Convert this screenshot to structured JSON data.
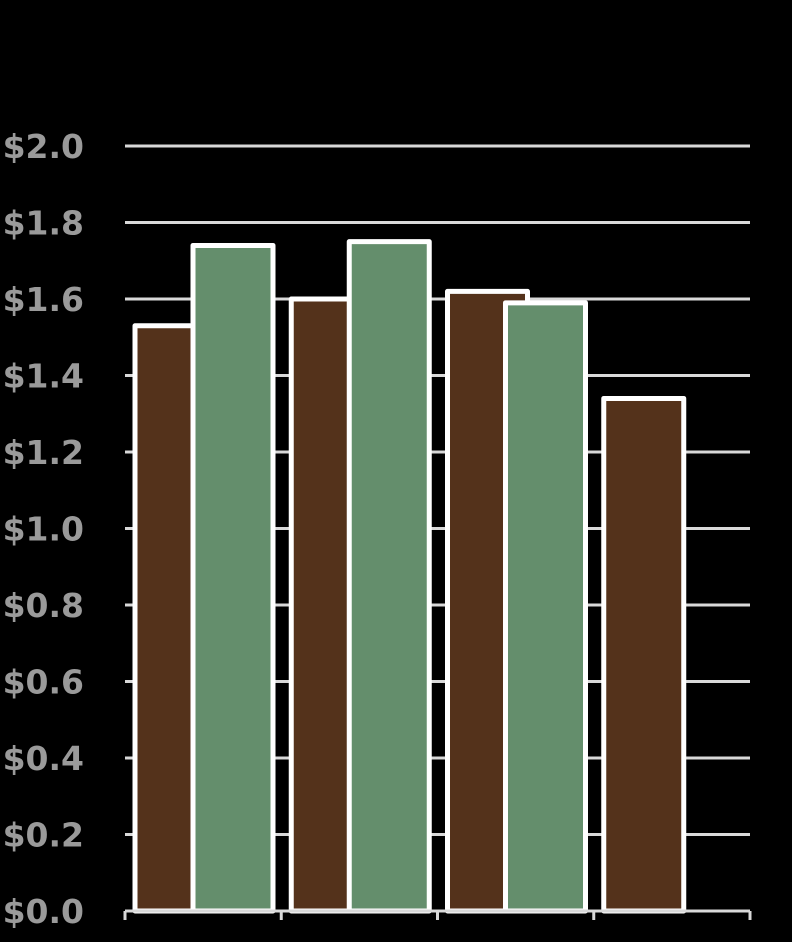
{
  "chart_data": {
    "type": "bar",
    "title": "",
    "xlabel": "",
    "ylabel": "",
    "ylim": [
      0,
      2.0
    ],
    "yticks": [
      "$0.0",
      "$0.2",
      "$0.4",
      "$0.6",
      "$0.8",
      "$1.0",
      "$1.2",
      "$1.4",
      "$1.6",
      "$1.8",
      "$2.0"
    ],
    "ytick_values": [
      0,
      0.2,
      0.4,
      0.6,
      0.8,
      1.0,
      1.2,
      1.4,
      1.6,
      1.8,
      2.0
    ],
    "grid": true,
    "legend": "none",
    "categories": [
      "",
      "",
      "",
      ""
    ],
    "series": [
      {
        "values": [
          1.53,
          1.6,
          1.62,
          1.34
        ],
        "color": "#54321b"
      },
      {
        "values": [
          1.74,
          1.75,
          1.59,
          null
        ],
        "color": "#648e6c"
      }
    ],
    "colors": {
      "background": "#000000",
      "grid": "#d9d9d9",
      "bar_outline": "#ffffff",
      "tick_text": "#9a9a9a"
    }
  }
}
